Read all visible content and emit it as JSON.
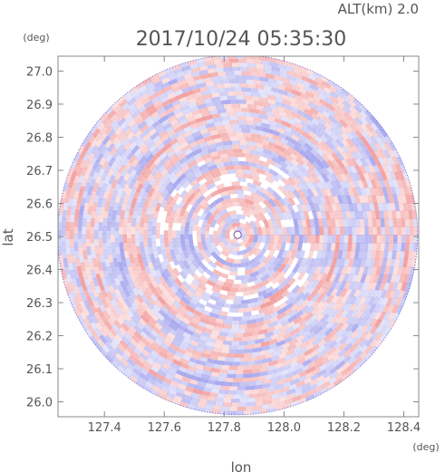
{
  "chart_data": {
    "type": "heatmap",
    "title": "2017/10/24 05:35:30",
    "subtitle": "ALT(km) 2.0",
    "xlabel": "lon",
    "ylabel": "lat",
    "xunit": "(deg)",
    "yunit": "(deg)",
    "xlim": [
      127.245,
      128.45
    ],
    "ylim": [
      25.955,
      27.045
    ],
    "xticks": [
      "127.4",
      "127.6",
      "127.8",
      "128.0",
      "128.2",
      "128.4"
    ],
    "yticks": [
      "26.0",
      "26.1",
      "26.2",
      "26.3",
      "26.4",
      "26.5",
      "26.6",
      "26.7",
      "26.8",
      "26.9",
      "27.0"
    ],
    "center": {
      "lon": 127.845,
      "lat": 26.505
    },
    "radius_deg_lat": 0.545,
    "colors": {
      "positive": "#f4a6a6",
      "negative": "#b4b4f0",
      "neutral": "#ffffff",
      "edge": "#6a6ad8",
      "axis": "#888888",
      "text": "#555555"
    }
  }
}
